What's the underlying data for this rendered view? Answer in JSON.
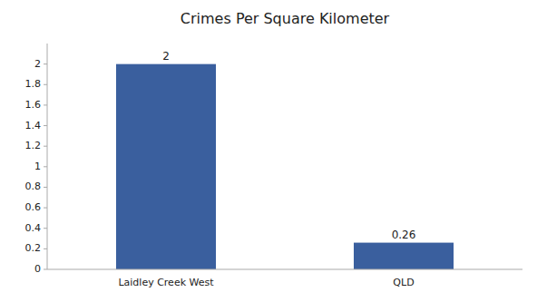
{
  "chart_data": {
    "type": "bar",
    "title": "Crimes Per Square Kilometer",
    "categories": [
      "Laidley Creek West",
      "QLD"
    ],
    "values": [
      2,
      0.26
    ],
    "color": "#3a5f9e",
    "ylim": [
      0,
      2.2
    ],
    "yticks": [
      0,
      0.2,
      0.4,
      0.6,
      0.8,
      1,
      1.2,
      1.4,
      1.6,
      1.8,
      2
    ],
    "grid": false,
    "data_labels": true
  }
}
